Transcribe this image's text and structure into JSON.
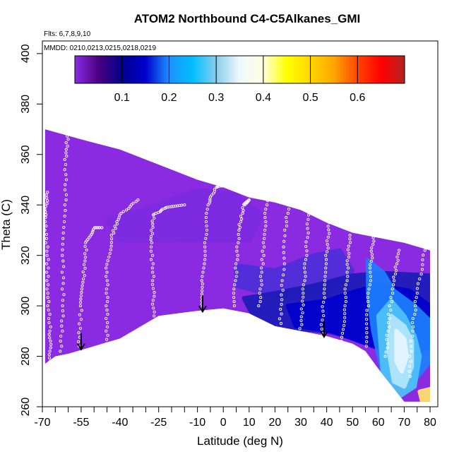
{
  "chart_data": {
    "type": "heatmap",
    "title": "ATOM2 Northbound C4-C5Alkanes_GMI",
    "flights_label": "Flts: 6,7,8,9,10",
    "dates_label": "MMDD: 0210,0213,0215,0218,0219",
    "xlabel": "Latitude (deg N)",
    "ylabel": "Theta (C)",
    "xlim": [
      -70,
      83
    ],
    "ylim": [
      260,
      405
    ],
    "x_ticks": [
      -70,
      -55,
      -40,
      -25,
      -10,
      0,
      10,
      20,
      30,
      40,
      50,
      60,
      70,
      80
    ],
    "x_minor_ticks": [
      -65,
      -60,
      -50,
      -45,
      -35,
      -30,
      -20,
      -15,
      -5,
      5,
      15,
      25,
      35,
      45,
      55,
      65,
      75
    ],
    "y_ticks": [
      260,
      280,
      300,
      320,
      340,
      360,
      380,
      400
    ],
    "colorbar": {
      "min": 0.0,
      "max": 0.7,
      "ticks": [
        0.1,
        0.2,
        0.3,
        0.4,
        0.5,
        0.6
      ],
      "colors": [
        "#8a2be2",
        "#4b0082",
        "#00008b",
        "#0000cd",
        "#1e90ff",
        "#00bfff",
        "#87ceeb",
        "#f0f8ff",
        "#ffffe0",
        "#ffff00",
        "#ffd700",
        "#ffa500",
        "#ff4500",
        "#ff0000",
        "#b22222"
      ]
    },
    "domain": {
      "top": [
        [
          -69,
          370
        ],
        [
          -55,
          366
        ],
        [
          -40,
          362
        ],
        [
          -25,
          356
        ],
        [
          -10,
          350
        ],
        [
          0,
          347
        ],
        [
          10,
          343
        ],
        [
          20,
          341
        ],
        [
          30,
          338
        ],
        [
          40,
          333
        ],
        [
          50,
          329
        ],
        [
          60,
          327
        ],
        [
          70,
          325
        ],
        [
          80,
          322
        ]
      ],
      "bottom": [
        [
          80,
          262
        ],
        [
          70,
          262
        ],
        [
          60,
          275
        ],
        [
          55,
          282
        ],
        [
          50,
          285
        ],
        [
          40,
          288
        ],
        [
          30,
          290
        ],
        [
          20,
          292
        ],
        [
          10,
          297
        ],
        [
          0,
          299
        ],
        [
          -10,
          298
        ],
        [
          -25,
          296
        ],
        [
          -40,
          287
        ],
        [
          -50,
          284
        ],
        [
          -60,
          281
        ],
        [
          -65,
          280
        ],
        [
          -69,
          277
        ]
      ]
    },
    "base_color": "#8a2be2",
    "regions": [
      {
        "color": "#7c2ae0",
        "points": [
          [
            -45,
            334
          ],
          [
            -25,
            340
          ],
          [
            -10,
            346
          ],
          [
            5,
            344
          ],
          [
            15,
            336
          ],
          [
            10,
            326
          ],
          [
            -20,
            326
          ],
          [
            -40,
            326
          ]
        ]
      },
      {
        "color": "#4d2fd8",
        "points": [
          [
            5,
            316
          ],
          [
            20,
            314
          ],
          [
            35,
            320
          ],
          [
            45,
            322
          ],
          [
            50,
            314
          ],
          [
            40,
            304
          ],
          [
            20,
            304
          ],
          [
            5,
            308
          ]
        ]
      },
      {
        "color": "#1c1cb8",
        "points": [
          [
            8,
            303
          ],
          [
            20,
            305
          ],
          [
            35,
            308
          ],
          [
            50,
            312
          ],
          [
            62,
            313
          ],
          [
            80,
            312
          ],
          [
            80,
            286
          ],
          [
            65,
            282
          ],
          [
            55,
            286
          ],
          [
            40,
            290
          ],
          [
            25,
            291
          ],
          [
            12,
            295
          ]
        ]
      },
      {
        "color": "#0000cd",
        "points": [
          [
            25,
            300
          ],
          [
            40,
            302
          ],
          [
            52,
            306
          ],
          [
            60,
            308
          ],
          [
            72,
            306
          ],
          [
            80,
            300
          ],
          [
            80,
            284
          ],
          [
            70,
            280
          ],
          [
            58,
            284
          ],
          [
            42,
            290
          ],
          [
            28,
            292
          ]
        ]
      },
      {
        "color": "#1e7fff",
        "points": [
          [
            56,
            318
          ],
          [
            62,
            313
          ],
          [
            66,
            306
          ],
          [
            74,
            300
          ],
          [
            80,
            294
          ],
          [
            80,
            278
          ],
          [
            72,
            268
          ],
          [
            62,
            272
          ],
          [
            58,
            290
          ],
          [
            56,
            305
          ]
        ]
      },
      {
        "color": "#4fc3f7",
        "points": [
          [
            60,
            296
          ],
          [
            65,
            302
          ],
          [
            70,
            296
          ],
          [
            74,
            288
          ],
          [
            76,
            280
          ],
          [
            74,
            268
          ],
          [
            68,
            264
          ],
          [
            62,
            270
          ]
        ]
      },
      {
        "color": "#b3e5fc",
        "points": [
          [
            65,
            296
          ],
          [
            70,
            292
          ],
          [
            73,
            286
          ],
          [
            73,
            276
          ],
          [
            70,
            268
          ],
          [
            66,
            270
          ],
          [
            64,
            282
          ]
        ]
      },
      {
        "color": "#e6f6ff",
        "points": [
          [
            67,
            290
          ],
          [
            70,
            287
          ],
          [
            71,
            280
          ],
          [
            69,
            274
          ],
          [
            67,
            278
          ]
        ]
      },
      {
        "color": "#ffe566",
        "points": [
          [
            76,
            266
          ],
          [
            80,
            267
          ],
          [
            80,
            262
          ],
          [
            77,
            262
          ]
        ]
      }
    ],
    "flight_tracks": [
      [
        [
          -67,
          278
        ],
        [
          -67,
          290
        ],
        [
          -68,
          305
        ],
        [
          -68,
          320
        ],
        [
          -69,
          335
        ],
        [
          -68,
          345
        ]
      ],
      [
        [
          -63,
          282
        ],
        [
          -62,
          300
        ],
        [
          -62,
          320
        ],
        [
          -61,
          340
        ],
        [
          -61,
          358
        ],
        [
          -60,
          370
        ]
      ],
      [
        [
          -56,
          284
        ],
        [
          -55,
          300
        ],
        [
          -54,
          312
        ],
        [
          -53,
          325
        ],
        [
          -50,
          331
        ],
        [
          -47,
          331
        ]
      ],
      [
        [
          -45,
          285
        ],
        [
          -45,
          300
        ],
        [
          -45,
          315
        ],
        [
          -43,
          328
        ],
        [
          -40,
          336
        ],
        [
          -33,
          342
        ]
      ],
      [
        [
          -27,
          296
        ],
        [
          -27,
          310
        ],
        [
          -28,
          325
        ],
        [
          -27,
          336
        ],
        [
          -22,
          339
        ],
        [
          -15,
          340
        ]
      ],
      [
        [
          -8,
          298
        ],
        [
          -8,
          310
        ],
        [
          -7,
          325
        ],
        [
          -6,
          340
        ],
        [
          -3,
          347
        ],
        [
          2,
          348
        ]
      ],
      [
        [
          4,
          300
        ],
        [
          5,
          315
        ],
        [
          6,
          330
        ],
        [
          8,
          340
        ],
        [
          10,
          342
        ]
      ],
      [
        [
          14,
          300
        ],
        [
          15,
          315
        ],
        [
          16,
          330
        ],
        [
          17,
          345
        ]
      ],
      [
        [
          22,
          293
        ],
        [
          23,
          310
        ],
        [
          24,
          330
        ],
        [
          26,
          345
        ]
      ],
      [
        [
          30,
          291
        ],
        [
          31,
          305
        ],
        [
          32,
          320
        ],
        [
          33,
          336
        ]
      ],
      [
        [
          38,
          289
        ],
        [
          39,
          305
        ],
        [
          40,
          320
        ],
        [
          41,
          333
        ]
      ],
      [
        [
          46,
          286
        ],
        [
          47,
          300
        ],
        [
          48,
          315
        ],
        [
          49,
          328
        ]
      ],
      [
        [
          55,
          284
        ],
        [
          56,
          300
        ],
        [
          57,
          315
        ],
        [
          58,
          327
        ]
      ],
      [
        [
          63,
          280
        ],
        [
          64,
          295
        ],
        [
          66,
          310
        ],
        [
          68,
          322
        ]
      ],
      [
        [
          72,
          272
        ],
        [
          73,
          290
        ],
        [
          75,
          305
        ],
        [
          78,
          322
        ]
      ]
    ],
    "arrows": [
      [
        -55,
        283
      ],
      [
        -8,
        298
      ],
      [
        39,
        288
      ]
    ]
  }
}
